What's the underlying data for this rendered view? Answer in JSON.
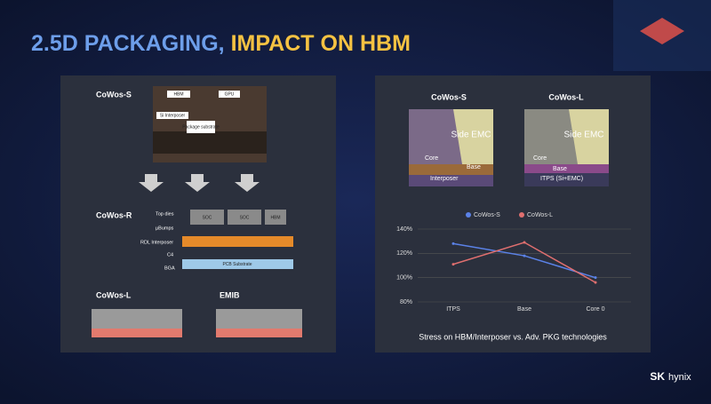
{
  "slide": {
    "title_part1": "2.5D PACKAGING,",
    "title_part2": "IMPACT ON HBM",
    "left_panel": {
      "cowos_s": {
        "label": "CoWos-S",
        "parts": [
          "HBM",
          "GPU",
          "Si Interposer",
          "Package substrate"
        ]
      },
      "cowos_r": {
        "label": "CoWos-R",
        "callouts": [
          "Top dies",
          "µBumps",
          "RDL Interposer",
          "C4",
          "BGA"
        ],
        "dies": [
          "SOC",
          "SOC",
          "HBM"
        ],
        "substrate": "PCB Substrate"
      },
      "cowos_l": {
        "label": "CoWos-L"
      },
      "emib": {
        "label": "EMIB"
      }
    },
    "right_panel": {
      "cowos_s": {
        "label": "CoWos-S",
        "layers": [
          "Side EMC",
          "Core",
          "Base",
          "Interposer"
        ]
      },
      "cowos_l": {
        "label": "CoWos-L",
        "layers": [
          "Side EMC",
          "Core",
          "Base",
          "ITPS (Si+EMC)"
        ]
      }
    },
    "logo": {
      "brand": "SK",
      "name": "hynix"
    }
  },
  "chart_data": {
    "type": "line",
    "title": "Stress on HBM/Interposer vs. Adv. PKG technologies",
    "categories": [
      "ITPS",
      "Base",
      "Core 0"
    ],
    "series": [
      {
        "name": "CoWos-S",
        "color": "#5b82e8",
        "values": [
          128,
          118,
          100
        ]
      },
      {
        "name": "CoWos-L",
        "color": "#e06f6f",
        "values": [
          111,
          129,
          96
        ]
      }
    ],
    "ylim": [
      80,
      140
    ],
    "yticks": [
      {
        "value": 80,
        "label": "80%"
      },
      {
        "value": 100,
        "label": "100%"
      },
      {
        "value": 120,
        "label": "120%"
      },
      {
        "value": 140,
        "label": "140%"
      }
    ],
    "grid": true,
    "legend": "top"
  }
}
